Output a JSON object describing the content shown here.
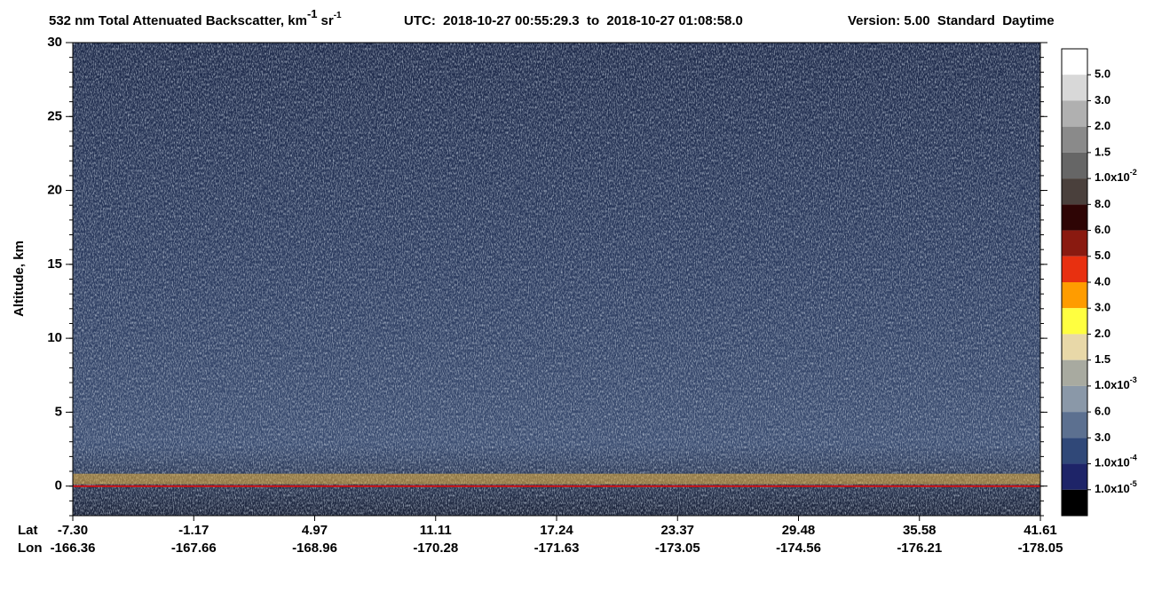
{
  "chart_data": {
    "type": "heatmap",
    "title": [
      "532 nm Total Attenuated Backscatter, km",
      "-1",
      "sr",
      "-1"
    ],
    "subtitle": "UTC:  2018-10-27 00:55:29.3  to  2018-10-27 01:08:58.0",
    "version": "Version: 5.00  Standard  Daytime",
    "ylabel": "Altitude, km",
    "ylim": [
      -2,
      30
    ],
    "yticks": [
      0,
      5,
      10,
      15,
      20,
      25,
      30
    ],
    "x_row_labels": [
      "Lat",
      "Lon"
    ],
    "lat": [
      "-7.30",
      "-1.17",
      "4.97",
      "11.11",
      "17.24",
      "23.37",
      "29.48",
      "35.58",
      "41.61"
    ],
    "lon": [
      "-166.36",
      "-167.66",
      "-168.96",
      "-170.28",
      "-171.63",
      "-173.05",
      "-174.56",
      "-176.21",
      "-178.05"
    ],
    "colorbar": {
      "colors": [
        "#ffffff",
        "#d8d8d8",
        "#b0b0b0",
        "#8a8a8a",
        "#666666",
        "#4a403c",
        "#2e0505",
        "#8a1a10",
        "#e83010",
        "#ff9c00",
        "#ffff40",
        "#e8d8a8",
        "#a8aaa0",
        "#8a98a8",
        "#5c7090",
        "#304878",
        "#1e2468",
        "#000000"
      ],
      "labels": [
        "5.0",
        "3.0",
        "2.0",
        "1.5",
        {
          "text": "1.0x10",
          "sup": "-2"
        },
        "8.0",
        "6.0",
        "5.0",
        "4.0",
        "3.0",
        "2.0",
        "1.5",
        {
          "text": "1.0x10",
          "sup": "-3"
        },
        "6.0",
        "3.0",
        {
          "text": "1.0x10",
          "sup": "-4"
        },
        {
          "text": "1.0x10",
          "sup": "-5"
        }
      ]
    }
  }
}
